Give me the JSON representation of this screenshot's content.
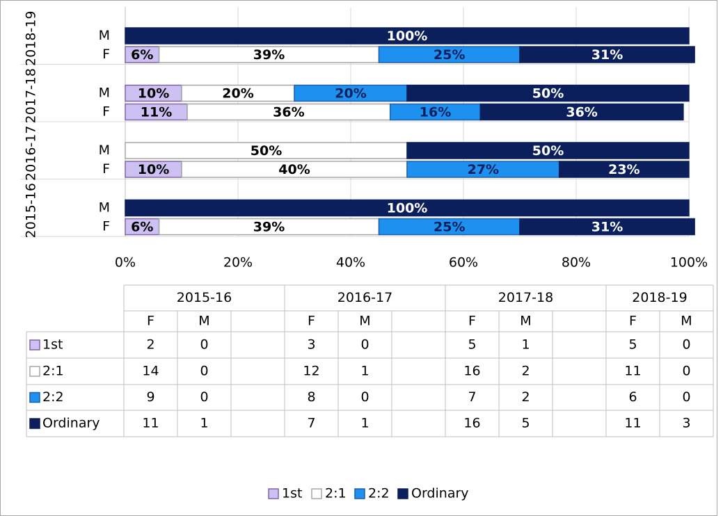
{
  "chart_data": {
    "type": "bar",
    "orientation": "horizontal",
    "stacked": true,
    "groups": [
      "2018-19",
      "2017-18",
      "2016-17",
      "2015-16"
    ],
    "categories": [
      "M",
      "F",
      "M",
      "F",
      "M",
      "F",
      "M",
      "F"
    ],
    "series": [
      {
        "name": "1st",
        "color": "#ccc1f2",
        "border": "#8064a2",
        "label_color": "#000000",
        "values": [
          0,
          6,
          10,
          11,
          0,
          10,
          0,
          6
        ],
        "value_labels": [
          null,
          "6%",
          "10%",
          "11%",
          null,
          "10%",
          null,
          "6%"
        ]
      },
      {
        "name": "2:1",
        "color": "#ffffff",
        "border": "#a6a6a6",
        "label_color": "#000000",
        "values": [
          0,
          39,
          20,
          36,
          50,
          40,
          0,
          39
        ],
        "value_labels": [
          null,
          "39%",
          "20%",
          "36%",
          "50%",
          "40%",
          null,
          "39%"
        ]
      },
      {
        "name": "2:2",
        "color": "#1e90f0",
        "border": "#1f5fa8",
        "label_color": "#0a1f5c",
        "values": [
          0,
          25,
          20,
          16,
          0,
          27,
          0,
          25
        ],
        "value_labels": [
          null,
          "25%",
          "20%",
          "16%",
          null,
          "27%",
          null,
          "25%"
        ]
      },
      {
        "name": "Ordinary",
        "color": "#0a1f5c",
        "border": "#0a1f5c",
        "label_color": "#ffffff",
        "values": [
          100,
          31,
          50,
          36,
          50,
          23,
          100,
          31
        ],
        "value_labels": [
          "100%",
          "31%",
          "50%",
          "36%",
          "50%",
          "23%",
          "100%",
          "31%"
        ]
      }
    ],
    "xlim": [
      0,
      100
    ],
    "xticks": [
      {
        "value": 0,
        "label": "0%"
      },
      {
        "value": 20,
        "label": "20%"
      },
      {
        "value": 40,
        "label": "40%"
      },
      {
        "value": 60,
        "label": "60%"
      },
      {
        "value": 80,
        "label": "80%"
      },
      {
        "value": 100,
        "label": "100%"
      }
    ],
    "grid": true,
    "legend": "bottom",
    "data_table": {
      "years": [
        "2015-16",
        "2016-17",
        "2017-18",
        "2018-19"
      ],
      "subheaders": [
        "F",
        "M"
      ],
      "values": [
        [
          2,
          0,
          3,
          0,
          5,
          1,
          5,
          0
        ],
        [
          14,
          0,
          12,
          1,
          16,
          2,
          11,
          0
        ],
        [
          9,
          0,
          8,
          0,
          7,
          2,
          6,
          0
        ],
        [
          11,
          1,
          7,
          1,
          16,
          5,
          11,
          3
        ]
      ]
    }
  }
}
